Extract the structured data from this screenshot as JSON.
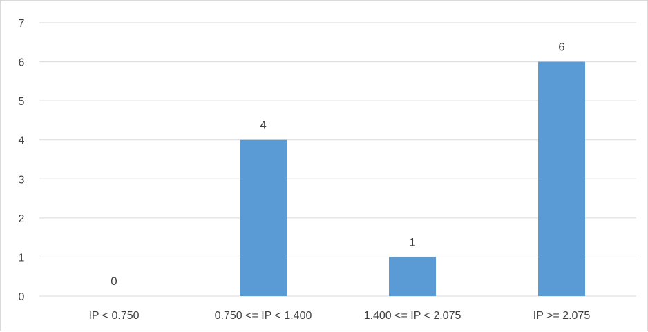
{
  "chart_data": {
    "type": "bar",
    "categories": [
      "IP < 0.750",
      "0.750 <= IP < 1.400",
      "1.400 <= IP < 2.075",
      "IP >= 2.075"
    ],
    "values": [
      0,
      4,
      1,
      6
    ],
    "data_labels": [
      "0",
      "4",
      "1",
      "6"
    ],
    "title": "",
    "xlabel": "",
    "ylabel": "",
    "ylim": [
      0,
      7
    ],
    "yticks": [
      "0",
      "1",
      "2",
      "3",
      "4",
      "5",
      "6",
      "7"
    ],
    "grid": true,
    "legend": "none",
    "bar_color": "#5b9bd5",
    "grid_color": "#d9d9d9",
    "text_color": "#404040"
  }
}
